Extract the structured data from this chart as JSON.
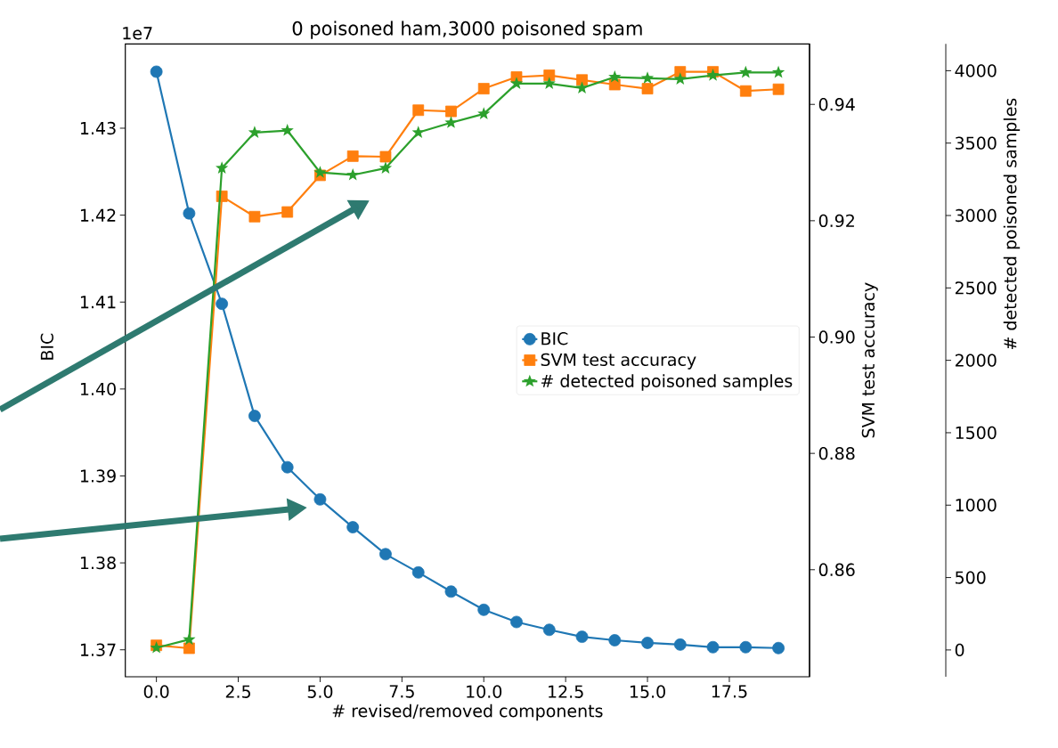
{
  "chart_data": {
    "type": "line",
    "title": "0 poisoned ham,3000 poisoned spam",
    "xlabel": "# revised/removed components",
    "ylabel": "BIC",
    "y2label": "SVM test accuracy",
    "y3label": "# detected poisoned samples",
    "annotations": [
      "1e7"
    ],
    "x": [
      0,
      1,
      2,
      3,
      4,
      5,
      6,
      7,
      8,
      9,
      10,
      11,
      12,
      13,
      14,
      15,
      16,
      17,
      18,
      19
    ],
    "xlim": [
      -0.95,
      19.95
    ],
    "xticks": [
      {
        "value": 0,
        "label": "0.0"
      },
      2.5,
      {
        "value": 5,
        "label": "5.0"
      },
      7.5,
      {
        "value": 10,
        "label": "10.0"
      },
      12.5,
      {
        "value": 15,
        "label": "15.0"
      },
      17.5
    ],
    "ylim": [
      1.3669,
      1.4397
    ],
    "yticks": [
      1.37,
      1.38,
      1.39,
      {
        "value": 1.4,
        "label": "1.40"
      },
      1.41,
      1.42,
      1.43
    ],
    "y2lim": [
      0.8416,
      0.9504
    ],
    "y2ticks": [
      0.86,
      0.88,
      {
        "value": 0.9,
        "label": "0.90"
      },
      0.92,
      0.94
    ],
    "y3lim": [
      -185,
      4185
    ],
    "y3ticks": [
      0,
      500,
      1000,
      1500,
      2000,
      2500,
      3000,
      3500,
      4000
    ],
    "legend": "right",
    "series": [
      {
        "name": "BIC",
        "color": "#1f77b4",
        "marker": "circle",
        "axis": "y",
        "values": [
          1.4365,
          1.4202,
          1.4098,
          1.3969,
          1.391,
          1.3873,
          1.3841,
          1.381,
          1.3789,
          1.3767,
          1.3746,
          1.3732,
          1.3723,
          1.3715,
          1.3711,
          1.3708,
          1.3706,
          1.3703,
          1.3703,
          1.3702
        ]
      },
      {
        "name": "SVM test accuracy",
        "color": "#ff7f0e",
        "marker": "square",
        "axis": "y2",
        "values": [
          0.847,
          0.8465,
          0.9242,
          0.9207,
          0.9215,
          0.9278,
          0.9311,
          0.931,
          0.939,
          0.9388,
          0.9427,
          0.9447,
          0.945,
          0.9442,
          0.9434,
          0.9427,
          0.9456,
          0.9456,
          0.9423,
          0.9426
        ]
      },
      {
        "name": "# detected poisoned samples",
        "color": "#2ca02c",
        "marker": "star",
        "axis": "y3",
        "values": [
          15,
          72,
          3327,
          3573,
          3587,
          3297,
          3280,
          3327,
          3573,
          3641,
          3702,
          3911,
          3911,
          3880,
          3956,
          3948,
          3942,
          3968,
          3988,
          3988
        ]
      }
    ]
  }
}
